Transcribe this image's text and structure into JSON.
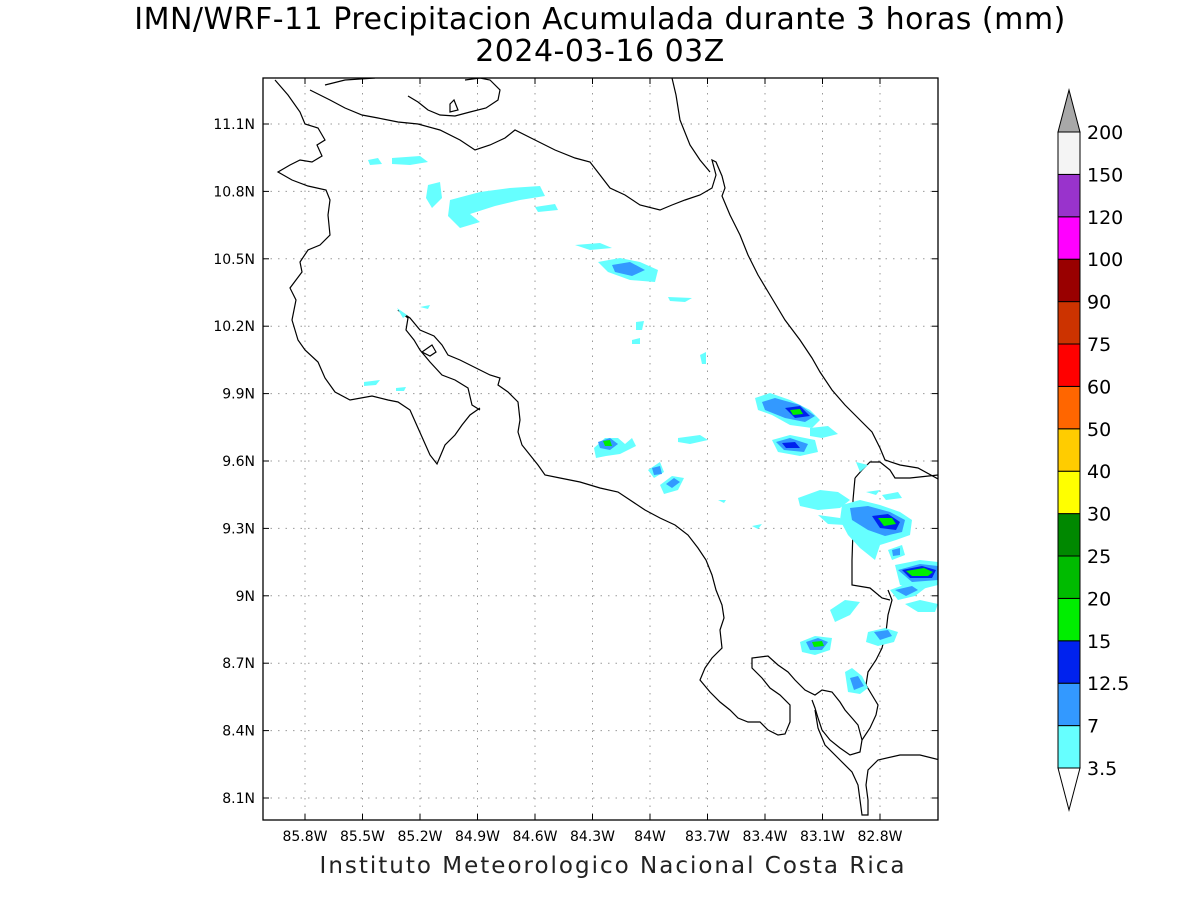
{
  "title": {
    "line1": "IMN/WRF-11 Precipitacion Acumulada durante 3 horas (mm)",
    "line2": "2024-03-16 03Z"
  },
  "footer": "Instituto Meteorologico Nacional Costa Rica",
  "axes": {
    "lat_ticks": [
      "11.1N",
      "10.8N",
      "10.5N",
      "10.2N",
      "9.9N",
      "9.6N",
      "9.3N",
      "9N",
      "8.7N",
      "8.4N",
      "8.1N"
    ],
    "lon_ticks": [
      "85.8W",
      "85.5W",
      "85.2W",
      "84.9W",
      "84.6W",
      "84.3W",
      "84W",
      "83.7W",
      "83.4W",
      "83.1W",
      "82.8W"
    ],
    "grid": true
  },
  "colorbar": {
    "levels": [
      "3.5",
      "7",
      "12.5",
      "15",
      "20",
      "25",
      "30",
      "40",
      "50",
      "60",
      "75",
      "90",
      "100",
      "120",
      "150",
      "200"
    ],
    "colors": [
      "#ffffff",
      "#66ffff",
      "#3399ff",
      "#0022ee",
      "#00ee00",
      "#00bb00",
      "#008800",
      "#ffff00",
      "#ffcc00",
      "#ff6600",
      "#ff0000",
      "#cc3300",
      "#990000",
      "#ff00ff",
      "#9933cc",
      "#f4f4f4",
      "#a8a8a8"
    ]
  }
}
